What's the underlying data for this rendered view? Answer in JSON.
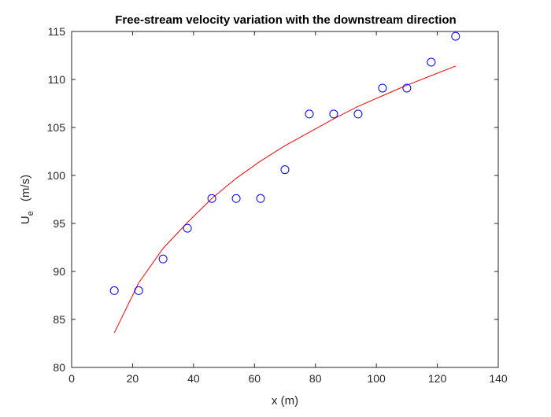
{
  "chart_data": {
    "type": "scatter",
    "title": "Free-stream velocity variation with the downstream direction",
    "xlabel": "x   (m)",
    "ylabel_main": "U",
    "ylabel_sub": "e",
    "ylabel_unit": "(m/s)",
    "xlim": [
      0,
      140
    ],
    "ylim": [
      80,
      115
    ],
    "xticks": [
      0,
      20,
      40,
      60,
      80,
      100,
      120,
      140
    ],
    "yticks": [
      80,
      85,
      90,
      95,
      100,
      105,
      110,
      115
    ],
    "grid": false,
    "series": [
      {
        "kind": "markers",
        "marker": "circle",
        "color": "#0000ff",
        "x": [
          14,
          22,
          30,
          38,
          46,
          54,
          62,
          70,
          78,
          86,
          94,
          102,
          110,
          118,
          126
        ],
        "y": [
          88.0,
          88.0,
          91.3,
          94.5,
          97.6,
          97.6,
          97.6,
          100.6,
          106.4,
          106.4,
          106.4,
          109.1,
          109.1,
          111.8,
          114.5
        ]
      },
      {
        "kind": "line",
        "color": "#ff0000",
        "x": [
          14,
          22,
          30,
          38,
          46,
          54,
          62,
          70,
          78,
          86,
          94,
          102,
          110,
          118,
          126
        ],
        "y": [
          83.6,
          88.8,
          92.4,
          95.1,
          97.6,
          99.7,
          101.5,
          103.1,
          104.5,
          105.9,
          107.2,
          108.3,
          109.4,
          110.4,
          111.4
        ]
      }
    ]
  }
}
